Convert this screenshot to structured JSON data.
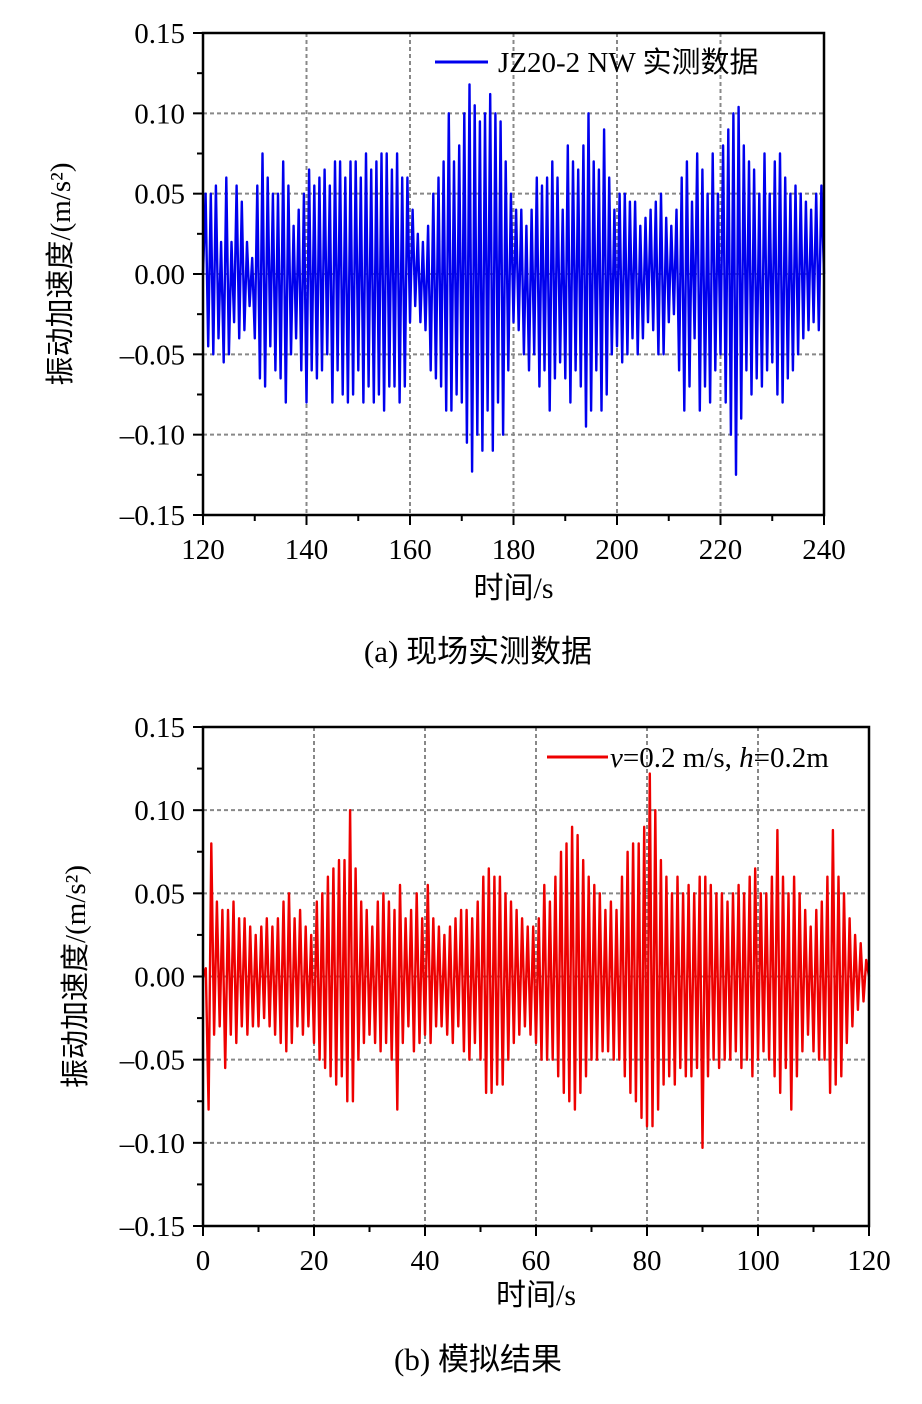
{
  "chart_data": [
    {
      "type": "line",
      "caption": "(a)  现场实测数据",
      "xlabel": "时间/s",
      "ylabel": "振动加速度/(m/s²)",
      "xlim": [
        120,
        240
      ],
      "ylim": [
        -0.15,
        0.15
      ],
      "x_ticks": [
        120,
        140,
        160,
        180,
        200,
        220,
        240
      ],
      "x_tick_labels": [
        "120",
        "140",
        "160",
        "180",
        "200",
        "220",
        "240"
      ],
      "y_ticks": [
        0.15,
        0.1,
        0.05,
        0.0,
        -0.05,
        -0.1,
        -0.15
      ],
      "y_tick_labels": [
        "0.15",
        "0.10",
        "0.05",
        "0.00",
        "–0.05",
        "–0.10",
        "–0.15"
      ],
      "grid": true,
      "legend_position": "top-right",
      "series": [
        {
          "name": "JZ20-2 NW 实测数据",
          "color": "#0000ee",
          "x_start": 120,
          "x_step": 0.5,
          "values": [
            0.0,
            0.05,
            -0.045,
            0.05,
            -0.05,
            0.055,
            -0.04,
            0.02,
            -0.055,
            0.06,
            -0.05,
            0.02,
            -0.03,
            0.055,
            -0.04,
            0.045,
            -0.035,
            0.02,
            -0.02,
            0.01,
            -0.04,
            0.055,
            -0.065,
            0.075,
            -0.07,
            0.06,
            -0.045,
            0.05,
            -0.06,
            0.05,
            -0.065,
            0.07,
            -0.08,
            0.055,
            -0.05,
            0.03,
            -0.04,
            0.04,
            -0.06,
            0.05,
            -0.08,
            0.065,
            -0.06,
            0.055,
            -0.065,
            0.06,
            -0.06,
            0.065,
            -0.05,
            0.055,
            -0.08,
            0.07,
            -0.06,
            0.07,
            -0.075,
            0.06,
            -0.08,
            0.07,
            -0.075,
            0.07,
            -0.06,
            0.06,
            -0.08,
            0.075,
            -0.07,
            0.065,
            -0.08,
            0.07,
            -0.075,
            0.075,
            -0.085,
            0.075,
            -0.07,
            0.065,
            -0.07,
            0.075,
            -0.08,
            0.06,
            -0.07,
            0.06,
            -0.03,
            0.04,
            -0.02,
            0.025,
            -0.03,
            0.02,
            -0.035,
            0.03,
            -0.06,
            0.05,
            -0.065,
            0.06,
            -0.07,
            0.07,
            -0.085,
            0.1,
            -0.085,
            0.07,
            -0.075,
            0.08,
            -0.08,
            0.1,
            -0.105,
            0.118,
            -0.123,
            0.105,
            -0.1,
            0.095,
            -0.11,
            0.1,
            -0.085,
            0.112,
            -0.11,
            0.1,
            -0.08,
            0.095,
            -0.1,
            0.07,
            -0.06,
            0.05,
            -0.03,
            0.04,
            -0.035,
            0.04,
            -0.05,
            0.03,
            -0.06,
            0.04,
            -0.05,
            0.06,
            -0.07,
            0.055,
            -0.06,
            0.06,
            -0.085,
            0.07,
            -0.065,
            0.06,
            -0.055,
            0.04,
            -0.065,
            0.08,
            -0.08,
            0.07,
            -0.06,
            0.065,
            -0.07,
            0.08,
            -0.095,
            0.1,
            -0.085,
            0.07,
            -0.06,
            0.065,
            -0.085,
            0.09,
            -0.075,
            0.06,
            -0.05,
            0.04,
            -0.045,
            0.05,
            -0.055,
            0.05,
            -0.05,
            0.045,
            -0.04,
            0.045,
            -0.05,
            0.03,
            -0.04,
            0.035,
            -0.03,
            0.04,
            -0.035,
            0.045,
            -0.05,
            0.05,
            -0.05,
            0.035,
            -0.03,
            0.03,
            -0.025,
            0.04,
            -0.06,
            0.06,
            -0.085,
            0.07,
            -0.07,
            0.045,
            -0.04,
            0.075,
            -0.085,
            0.065,
            -0.07,
            0.05,
            -0.08,
            0.075,
            -0.06,
            0.05,
            -0.05,
            0.08,
            -0.08,
            0.09,
            -0.1,
            0.1,
            -0.125,
            0.104,
            -0.09,
            0.08,
            -0.06,
            0.07,
            -0.075,
            0.065,
            -0.065,
            0.05,
            -0.07,
            0.075,
            -0.06,
            0.05,
            -0.055,
            0.07,
            -0.075,
            0.075,
            -0.08,
            0.06,
            -0.065,
            0.05,
            -0.06,
            0.055,
            -0.05,
            0.05,
            -0.04,
            0.045,
            -0.035,
            0.04,
            -0.03,
            0.05,
            -0.035,
            0.055,
            0.0
          ]
        }
      ]
    },
    {
      "type": "line",
      "caption": "(b)  模拟结果",
      "xlabel": "时间/s",
      "ylabel": "振动加速度/(m/s²)",
      "xlim": [
        0,
        120
      ],
      "ylim": [
        -0.15,
        0.15
      ],
      "x_ticks": [
        0,
        20,
        40,
        60,
        80,
        100,
        120
      ],
      "x_tick_labels": [
        "0",
        "20",
        "40",
        "60",
        "80",
        "100",
        "120"
      ],
      "y_ticks": [
        0.15,
        0.1,
        0.05,
        0.0,
        -0.05,
        -0.1,
        -0.15
      ],
      "y_tick_labels": [
        "0.15",
        "0.10",
        "0.05",
        "0.00",
        "–0.05",
        "–0.10",
        "–0.15"
      ],
      "grid": true,
      "legend_position": "top-right",
      "series": [
        {
          "name_parts": [
            "v",
            "=0.2 m/s, ",
            "h",
            "=0.2m"
          ],
          "color": "#ee0000",
          "x_start": 0,
          "x_step": 0.5,
          "values": [
            0,
            0.005,
            -0.08,
            0.08,
            -0.035,
            0.045,
            -0.03,
            0.04,
            -0.055,
            0.04,
            -0.035,
            0.045,
            -0.04,
            0.035,
            -0.03,
            0.035,
            -0.035,
            0.03,
            -0.03,
            0.025,
            -0.03,
            0.03,
            -0.025,
            0.035,
            -0.03,
            0.03,
            -0.035,
            0.035,
            -0.04,
            0.045,
            -0.045,
            0.05,
            -0.04,
            0.035,
            -0.03,
            0.04,
            -0.035,
            0.03,
            -0.03,
            0.025,
            -0.04,
            0.045,
            -0.05,
            0.05,
            -0.055,
            0.06,
            -0.06,
            0.065,
            -0.065,
            0.07,
            -0.06,
            0.07,
            -0.075,
            0.1,
            -0.075,
            0.065,
            -0.05,
            0.045,
            -0.04,
            0.04,
            -0.035,
            0.03,
            -0.04,
            0.045,
            -0.045,
            0.05,
            -0.04,
            0.045,
            -0.05,
            0.04,
            -0.08,
            0.055,
            -0.04,
            0.035,
            -0.03,
            0.04,
            -0.045,
            0.05,
            -0.04,
            0.035,
            -0.035,
            0.055,
            -0.04,
            0.035,
            -0.03,
            0.03,
            -0.03,
            0.025,
            -0.035,
            0.03,
            -0.04,
            0.035,
            -0.03,
            0.04,
            -0.045,
            0.04,
            -0.05,
            0.035,
            -0.04,
            0.045,
            -0.05,
            0.06,
            -0.07,
            0.065,
            -0.07,
            0.06,
            -0.065,
            0.06,
            -0.065,
            0.05,
            -0.05,
            0.045,
            -0.04,
            0.04,
            -0.035,
            0.035,
            -0.03,
            0.03,
            -0.035,
            0.03,
            -0.04,
            0.035,
            -0.05,
            0.055,
            -0.05,
            0.045,
            -0.05,
            0.06,
            -0.06,
            0.075,
            -0.07,
            0.08,
            -0.075,
            0.09,
            -0.08,
            0.085,
            -0.07,
            0.07,
            -0.06,
            0.06,
            -0.05,
            0.055,
            -0.05,
            0.05,
            -0.045,
            0.04,
            -0.045,
            0.045,
            -0.05,
            0.04,
            -0.05,
            0.06,
            -0.06,
            0.075,
            -0.07,
            0.08,
            -0.075,
            0.08,
            -0.085,
            0.09,
            -0.09,
            0.122,
            -0.09,
            0.1,
            -0.08,
            0.07,
            -0.065,
            0.06,
            -0.06,
            0.05,
            -0.065,
            0.06,
            -0.055,
            0.05,
            -0.06,
            0.055,
            -0.06,
            0.05,
            -0.055,
            0.06,
            -0.103,
            0.06,
            -0.06,
            0.055,
            -0.05,
            0.05,
            -0.055,
            0.05,
            -0.05,
            0.045,
            -0.05,
            0.05,
            -0.045,
            0.055,
            -0.055,
            0.05,
            -0.05,
            0.06,
            -0.06,
            0.065,
            -0.05,
            0.05,
            -0.045,
            0.05,
            -0.05,
            0.06,
            -0.06,
            0.088,
            -0.07,
            0.06,
            -0.055,
            0.05,
            -0.08,
            0.06,
            -0.06,
            0.05,
            -0.045,
            0.04,
            -0.035,
            0.03,
            -0.045,
            0.04,
            -0.05,
            0.045,
            -0.05,
            0.06,
            -0.07,
            0.088,
            -0.065,
            0.06,
            -0.06,
            0.05,
            -0.04,
            0.035,
            -0.03,
            0.025,
            -0.02,
            0.02,
            -0.015,
            0.01,
            0
          ]
        }
      ]
    }
  ]
}
